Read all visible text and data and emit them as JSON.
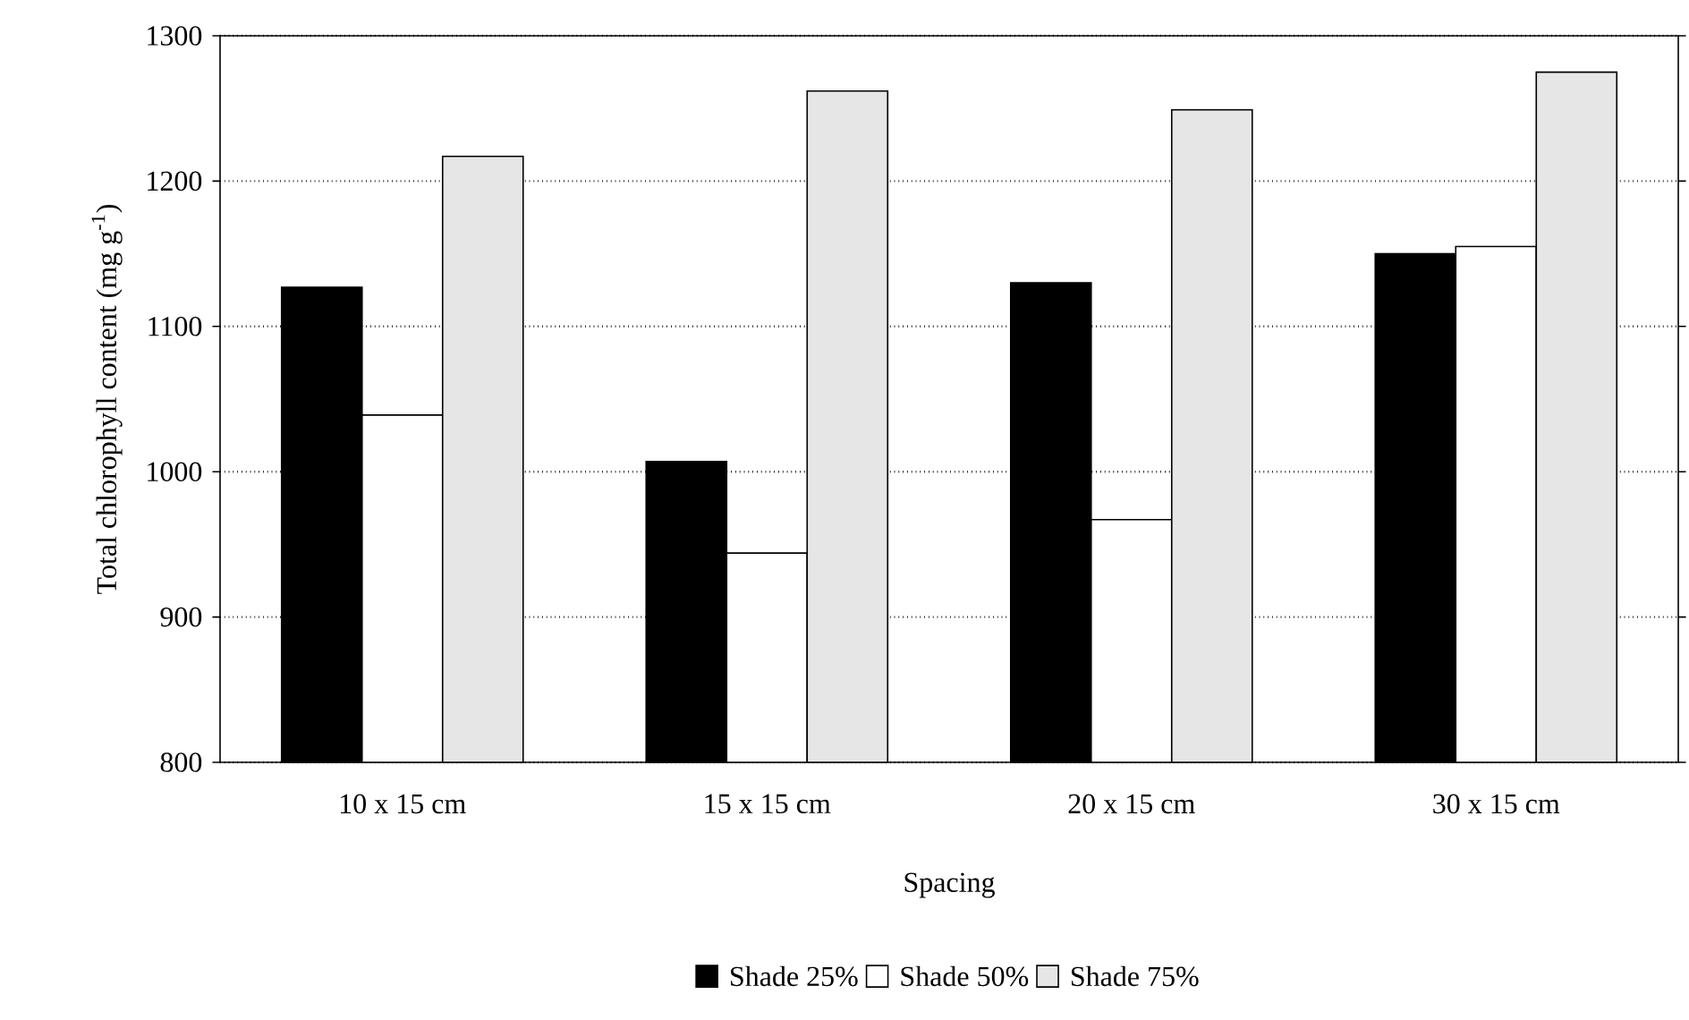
{
  "chart_data": {
    "type": "bar",
    "xlabel": "Spacing",
    "ylabel": "Total chlorophyll content (mg g$^{-1}$)",
    "categories": [
      "10 x 15 cm",
      "15 x 15 cm",
      "20 x 15 cm",
      "30 x 15 cm"
    ],
    "series": [
      {
        "name": "Shade 25%",
        "color": "#000000",
        "values": [
          1127,
          1007,
          1130,
          1150
        ]
      },
      {
        "name": "Shade 50%",
        "color": "#ffffff",
        "values": [
          1039,
          944,
          967,
          1155
        ]
      },
      {
        "name": "Shade 75%",
        "color": "#e6e6e6",
        "values": [
          1217,
          1262,
          1249,
          1275
        ]
      }
    ],
    "ylim": [
      800,
      1300
    ],
    "yticks": [
      800,
      900,
      1000,
      1100,
      1200,
      1300
    ],
    "grid": "y",
    "legend": "bottom"
  }
}
